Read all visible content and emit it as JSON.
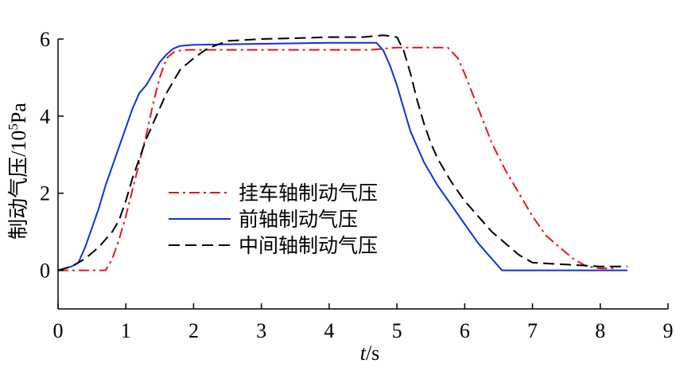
{
  "chart_data": {
    "type": "line",
    "title": "",
    "xlabel": "t/s",
    "xlabel_var": "t",
    "xlabel_unit": "/s",
    "ylabel": "制动气压/10⁵Pa",
    "ylabel_main": "制动气压/10",
    "ylabel_exp": "5",
    "ylabel_unit": "Pa",
    "xlim": [
      0,
      9
    ],
    "ylim": [
      -1,
      6
    ],
    "xticks": [
      0,
      1,
      2,
      3,
      4,
      5,
      6,
      7,
      8,
      9
    ],
    "yticks": [
      0,
      2,
      4,
      6
    ],
    "xtick_labels": [
      "0",
      "1",
      "2",
      "3",
      "4",
      "5",
      "6",
      "7",
      "8",
      "9"
    ],
    "ytick_labels": [
      "0",
      "2",
      "4",
      "6"
    ],
    "grid": false,
    "legend_position": "center",
    "series": [
      {
        "name": "挂车轴制动气压",
        "color": "#e8141b",
        "dash": "dash-dot",
        "x": [
          0.0,
          0.15,
          0.7,
          0.8,
          0.9,
          1.0,
          1.1,
          1.2,
          1.3,
          1.4,
          1.5,
          1.6,
          1.7,
          1.8,
          1.9,
          2.0,
          4.6,
          4.8,
          5.0,
          5.2,
          5.4,
          5.6,
          5.75,
          5.9,
          6.0,
          6.2,
          6.4,
          6.6,
          6.8,
          7.0,
          7.2,
          7.4,
          7.6,
          7.8,
          8.0,
          8.2
        ],
        "y": [
          0.0,
          0.0,
          0.0,
          0.3,
          0.8,
          1.4,
          2.1,
          2.8,
          3.5,
          4.3,
          5.0,
          5.5,
          5.65,
          5.7,
          5.72,
          5.72,
          5.72,
          5.75,
          5.78,
          5.78,
          5.78,
          5.78,
          5.78,
          5.5,
          5.1,
          4.2,
          3.3,
          2.6,
          2.0,
          1.4,
          0.9,
          0.6,
          0.3,
          0.1,
          0.05,
          0.05
        ]
      },
      {
        "name": "前轴制动气压",
        "color": "#1030e0",
        "dash": "solid",
        "x": [
          0.0,
          0.2,
          0.3,
          0.4,
          0.5,
          0.6,
          0.7,
          0.8,
          0.9,
          1.0,
          1.1,
          1.2,
          1.3,
          1.4,
          1.5,
          1.6,
          1.7,
          1.8,
          2.0,
          4.0,
          4.7,
          4.8,
          4.9,
          5.0,
          5.1,
          5.2,
          5.4,
          5.6,
          5.8,
          6.0,
          6.2,
          6.4,
          6.55,
          8.4
        ],
        "y": [
          0.0,
          0.1,
          0.2,
          0.6,
          1.1,
          1.6,
          2.2,
          2.7,
          3.2,
          3.7,
          4.2,
          4.6,
          4.8,
          5.1,
          5.4,
          5.6,
          5.75,
          5.82,
          5.85,
          5.9,
          5.9,
          5.7,
          5.3,
          4.8,
          4.2,
          3.6,
          2.8,
          2.2,
          1.7,
          1.2,
          0.7,
          0.3,
          0.0,
          0.0
        ]
      },
      {
        "name": "中间轴制动气压",
        "color": "#000000",
        "dash": "dashed",
        "x": [
          0.0,
          0.2,
          0.4,
          0.6,
          0.8,
          0.9,
          1.0,
          1.1,
          1.2,
          1.3,
          1.4,
          1.5,
          1.6,
          1.7,
          1.8,
          2.0,
          2.2,
          2.5,
          3.0,
          3.5,
          4.0,
          4.5,
          4.8,
          5.0,
          5.1,
          5.2,
          5.3,
          5.4,
          5.5,
          5.6,
          5.8,
          6.0,
          6.2,
          6.4,
          6.6,
          6.8,
          7.0,
          7.5,
          8.0,
          8.4
        ],
        "y": [
          0.0,
          0.1,
          0.3,
          0.6,
          1.0,
          1.3,
          1.8,
          2.4,
          2.9,
          3.4,
          3.8,
          4.2,
          4.6,
          4.9,
          5.2,
          5.5,
          5.75,
          5.95,
          6.0,
          6.02,
          6.05,
          6.05,
          6.1,
          6.05,
          5.7,
          5.1,
          4.4,
          3.8,
          3.3,
          2.9,
          2.3,
          1.8,
          1.4,
          1.0,
          0.7,
          0.4,
          0.2,
          0.15,
          0.1,
          0.1
        ]
      }
    ]
  }
}
